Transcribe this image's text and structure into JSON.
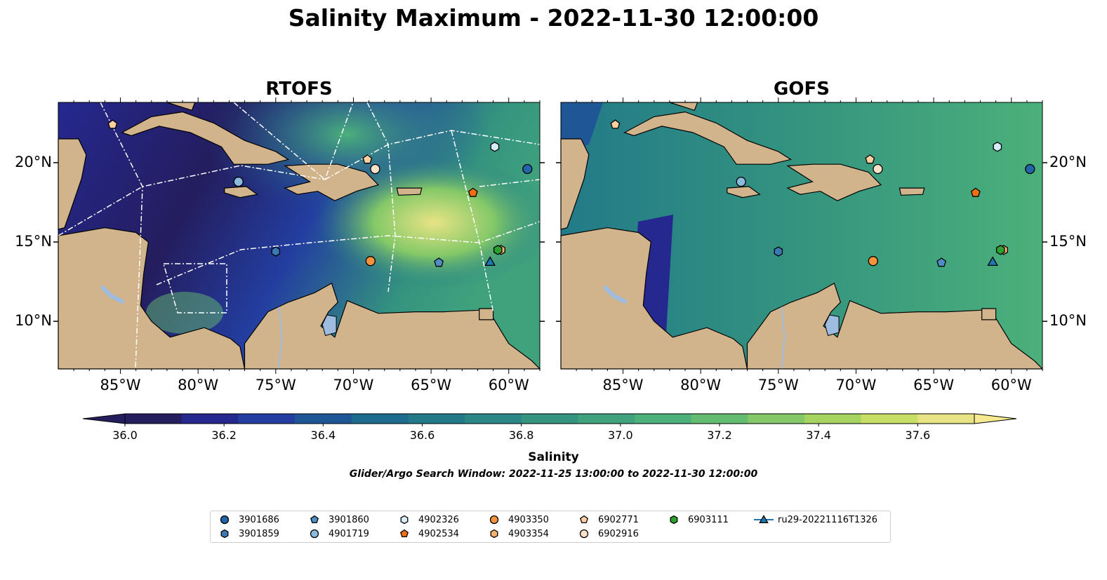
{
  "title": "Salinity Maximum - 2022-11-30 12:00:00",
  "panels": {
    "left": {
      "title": "RTOFS"
    },
    "right": {
      "title": "GOFS"
    }
  },
  "axes": {
    "lon_ticks": [
      "85°W",
      "80°W",
      "75°W",
      "70°W",
      "65°W",
      "60°W"
    ],
    "lat_ticks": [
      "20°N",
      "15°N",
      "10°N"
    ],
    "lon_range": [
      -89,
      -58
    ],
    "lat_range": [
      7,
      23.8
    ]
  },
  "colorbar": {
    "label": "Salinity",
    "ticks": [
      "36.0",
      "36.2",
      "36.4",
      "36.6",
      "36.8",
      "37.0",
      "37.2",
      "37.4",
      "37.6"
    ],
    "range": [
      36.0,
      37.6
    ],
    "colors": [
      "#241d5e",
      "#25288f",
      "#233ea0",
      "#1e5696",
      "#1d6b8e",
      "#227a88",
      "#2a8786",
      "#34947f",
      "#3fa27d",
      "#4bb07a",
      "#63bc70",
      "#84c868",
      "#a6d461",
      "#c8df66",
      "#e8e485",
      "#f6e98f"
    ],
    "extend": "both"
  },
  "search_window": "Glider/Argo Search Window: 2022-11-25 13:00:00 to 2022-11-30 12:00:00",
  "legend": {
    "items": [
      {
        "label": "3901686",
        "marker": "circle",
        "color": "#2164a8"
      },
      {
        "label": "3901859",
        "marker": "hexagon",
        "color": "#3b78b5"
      },
      {
        "label": "3901860",
        "marker": "pentagon",
        "color": "#4f8dc7"
      },
      {
        "label": "4901719",
        "marker": "circle",
        "color": "#8bbce0"
      },
      {
        "label": "4902326",
        "marker": "hexagon",
        "color": "#d6ecf8"
      },
      {
        "label": "4902534",
        "marker": "pentagon",
        "color": "#ef6f12"
      },
      {
        "label": "4903350",
        "marker": "circle",
        "color": "#f7923a"
      },
      {
        "label": "4903354",
        "marker": "hexagon",
        "color": "#fbb16f"
      },
      {
        "label": "6902771",
        "marker": "pentagon",
        "color": "#fdcfa1"
      },
      {
        "label": "6902916",
        "marker": "circle",
        "color": "#fde2c9"
      },
      {
        "label": "6903111",
        "marker": "hexagon",
        "color": "#2ca02c"
      },
      {
        "label": "ru29-20221116T1326",
        "marker": "triangle-line",
        "color": "#1f77b4"
      }
    ]
  },
  "observations": [
    {
      "id": "3901686",
      "lon": -58.8,
      "lat": 19.6
    },
    {
      "id": "3901859",
      "lon": -75.0,
      "lat": 14.4
    },
    {
      "id": "3901860",
      "lon": -64.5,
      "lat": 13.7
    },
    {
      "id": "4901719",
      "lon": -77.4,
      "lat": 18.8
    },
    {
      "id": "4902326",
      "lon": -60.9,
      "lat": 21.0
    },
    {
      "id": "4902534",
      "lon": -62.3,
      "lat": 18.1
    },
    {
      "id": "4903350",
      "lon": -68.9,
      "lat": 13.8
    },
    {
      "id": "4903354",
      "lon": -60.5,
      "lat": 14.5
    },
    {
      "id": "6902771",
      "lon": -85.5,
      "lat": 22.4
    },
    {
      "id": "6902916",
      "lon": -68.6,
      "lat": 19.6
    },
    {
      "id": "6902771",
      "lon": -69.1,
      "lat": 20.2
    },
    {
      "id": "6903111",
      "lon": -60.7,
      "lat": 14.5
    },
    {
      "id": "ru29-20221116T1326",
      "lon": -61.2,
      "lat": 13.7
    }
  ]
}
